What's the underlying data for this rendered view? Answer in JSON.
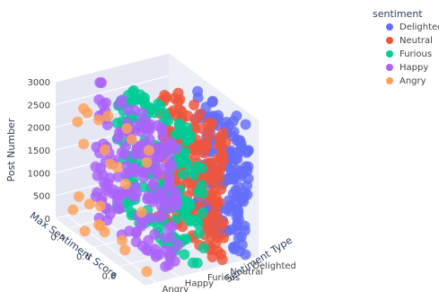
{
  "chart_data": {
    "type": "scatter3d",
    "legend": {
      "title": "sentiment",
      "placement": "top-right",
      "entries": [
        {
          "name": "Delighted",
          "color": "#636efa"
        },
        {
          "name": "Neutral",
          "color": "#ef553b"
        },
        {
          "name": "Furious",
          "color": "#00cc96"
        },
        {
          "name": "Happy",
          "color": "#ab63fa"
        },
        {
          "name": "Angry",
          "color": "#ffa15a"
        }
      ]
    },
    "axes": {
      "x": {
        "title": "Max Sentiment Score",
        "ticks": [
          "0.4",
          "0.6",
          "0.8",
          "1"
        ],
        "range": [
          0.3,
          1.0
        ]
      },
      "y": {
        "title": "Sentiment Type",
        "ticks": [
          "Angry",
          "Happy",
          "Furious",
          "Neutral",
          "Delighted"
        ]
      },
      "z": {
        "title": "Post Number",
        "ticks": [
          "0",
          "500",
          "1000",
          "1500",
          "2000",
          "2500",
          "3000"
        ],
        "range": [
          0,
          3000
        ]
      }
    },
    "series": [
      {
        "name": "Delighted",
        "category_index": 4,
        "score_range": [
          0.6,
          1.0
        ],
        "count": 180
      },
      {
        "name": "Neutral",
        "category_index": 3,
        "score_range": [
          0.5,
          1.0
        ],
        "count": 180
      },
      {
        "name": "Furious",
        "category_index": 2,
        "score_range": [
          0.35,
          1.0
        ],
        "count": 180
      },
      {
        "name": "Happy",
        "category_index": 1,
        "score_range": [
          0.35,
          1.0
        ],
        "count": 170
      },
      {
        "name": "Angry",
        "category_index": 0,
        "score_range": [
          0.35,
          0.95
        ],
        "count": 26
      }
    ],
    "grid": true
  }
}
